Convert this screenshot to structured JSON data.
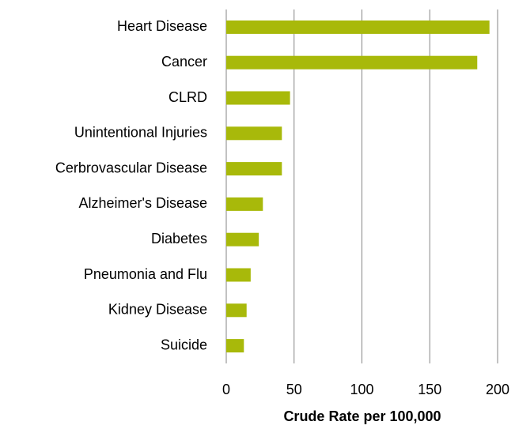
{
  "chart_data": {
    "type": "bar",
    "orientation": "horizontal",
    "x_label": "Crude Rate per 100,000",
    "categories": [
      "Heart Disease",
      "Cancer",
      "CLRD",
      "Unintentional Injuries",
      "Cerbrovascular Disease",
      "Alzheimer's Disease",
      "Diabetes",
      "Pneumonia and Flu",
      "Kidney Disease",
      "Suicide"
    ],
    "values": [
      194,
      185,
      47,
      41,
      41,
      27,
      24,
      18,
      15,
      13
    ],
    "color": "#a8b90a",
    "xlim": [
      0,
      200
    ],
    "xticks": [
      0,
      50,
      100,
      150,
      200
    ],
    "grid": true
  }
}
